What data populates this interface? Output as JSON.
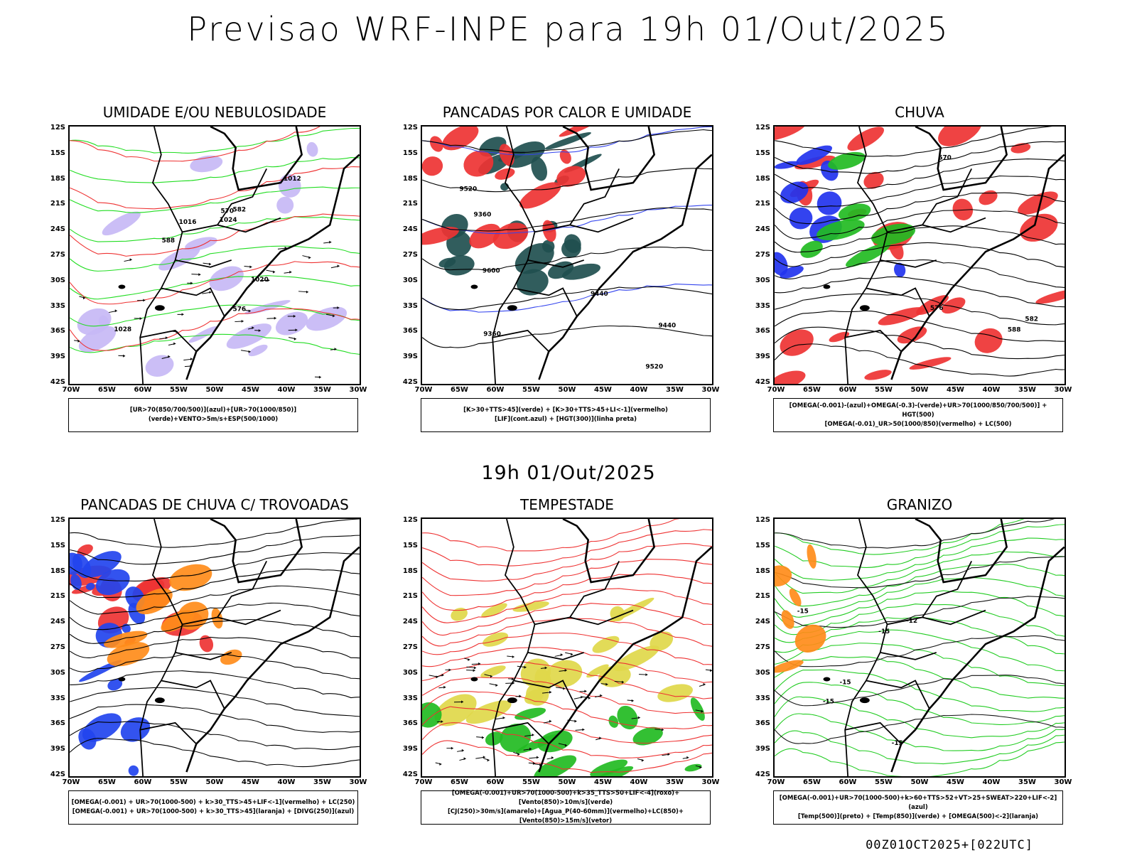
{
  "title": "Previsao WRF-INPE  para 19h 01/Out/2025",
  "subtitle": "19h 01/Out/2025",
  "footer": "00Z01OCT2025+[022UTC]",
  "lat_labels": [
    "12S",
    "15S",
    "18S",
    "21S",
    "24S",
    "27S",
    "30S",
    "33S",
    "36S",
    "39S",
    "42S"
  ],
  "lon_labels": [
    "70W",
    "65W",
    "60W",
    "55W",
    "50W",
    "45W",
    "40W",
    "35W",
    "30W"
  ],
  "panels": [
    {
      "title": "UMIDADE E/OU NEBULOSIDADE",
      "legend": [
        "[UR>70(850/700/500)](azul)+[UR>70(1000/850)](verde)+VENTO>5m/s+ESP(500/1000)"
      ],
      "colors": {
        "primary": "#c7b8f5",
        "secondary": "#22dd22",
        "tertiary": "#ee3333"
      },
      "contour_labels": [
        "1012",
        "1016",
        "1020",
        "1024",
        "1028",
        "570",
        "576",
        "582",
        "588"
      ]
    },
    {
      "title": "PANCADAS POR CALOR E UMIDADE",
      "legend": [
        "[K>30+TTS>45](verde) + [K>30+TTS>45+LI<-1](vermelho)",
        "[LIF](cont.azul) + [HGT(300)](linha preta)"
      ],
      "colors": {
        "primary": "#1f4f4f",
        "secondary": "#ee3333",
        "tertiary": "#3344ee"
      },
      "contour_labels": [
        "9520",
        "9600",
        "9440",
        "9520",
        "9440",
        "9360",
        "9360"
      ]
    },
    {
      "title": "CHUVA",
      "legend": [
        "[OMEGA(-0.001)-(azul)+OMEGA(-0.3)-(verde)+UR>70(1000/850/700/500)] + HGT(500)",
        "[OMEGA(-0.01)_UR>50(1000/850)(vermelho) + LC(500)"
      ],
      "colors": {
        "primary": "#ee3333",
        "secondary": "#2233ee",
        "tertiary": "#22bb22"
      },
      "contour_labels": [
        "588",
        "582",
        "576",
        "570"
      ]
    },
    {
      "title": "PANCADAS DE CHUVA C/ TROVOADAS",
      "legend": [
        "[OMEGA(-0.001) + UR>70(1000-500) + k>30_TTS>45+LIF<-1](vermelho) + LC(250)",
        "[OMEGA(-0.001) + UR>70(1000-500) + k>30_TTS>45](laranja) + [DIVG(250)](azul)"
      ],
      "colors": {
        "primary": "#ee3333",
        "secondary": "#2244ee",
        "tertiary": "#ff8c1a"
      },
      "contour_labels": []
    },
    {
      "title": "TEMPESTADE",
      "legend": [
        "[OMEGA(-0.001)+UR>70(1000-500)+k>35_TTS>50+LIF<-4](roxo)+[Vento(850)>10m/s](verde)",
        "[CJ(250)>30m/s](amarelo)+[Agua_P(40-60mm)](vermelho)+LC(850)+[Vento(850)>15m/s](vetor)"
      ],
      "colors": {
        "primary": "#e0d84a",
        "secondary": "#22bb22",
        "tertiary": "#ee3333"
      },
      "contour_labels": []
    },
    {
      "title": "GRANIZO",
      "legend": [
        "[OMEGA(-0.001)+UR>70(1000-500)+k>60+TTS>52+VT>25+SWEAT>220+LIF<-2](azul)",
        "[Temp(500)](preto) + [Temp(850)](verde) + [OMEGA(500)<-2](laranja)"
      ],
      "colors": {
        "primary": "#22cc22",
        "secondary": "#111111",
        "tertiary": "#ff8c1a"
      },
      "contour_labels": [
        "-15",
        "-15",
        "-15",
        "-15",
        "-15",
        "-12"
      ]
    }
  ]
}
